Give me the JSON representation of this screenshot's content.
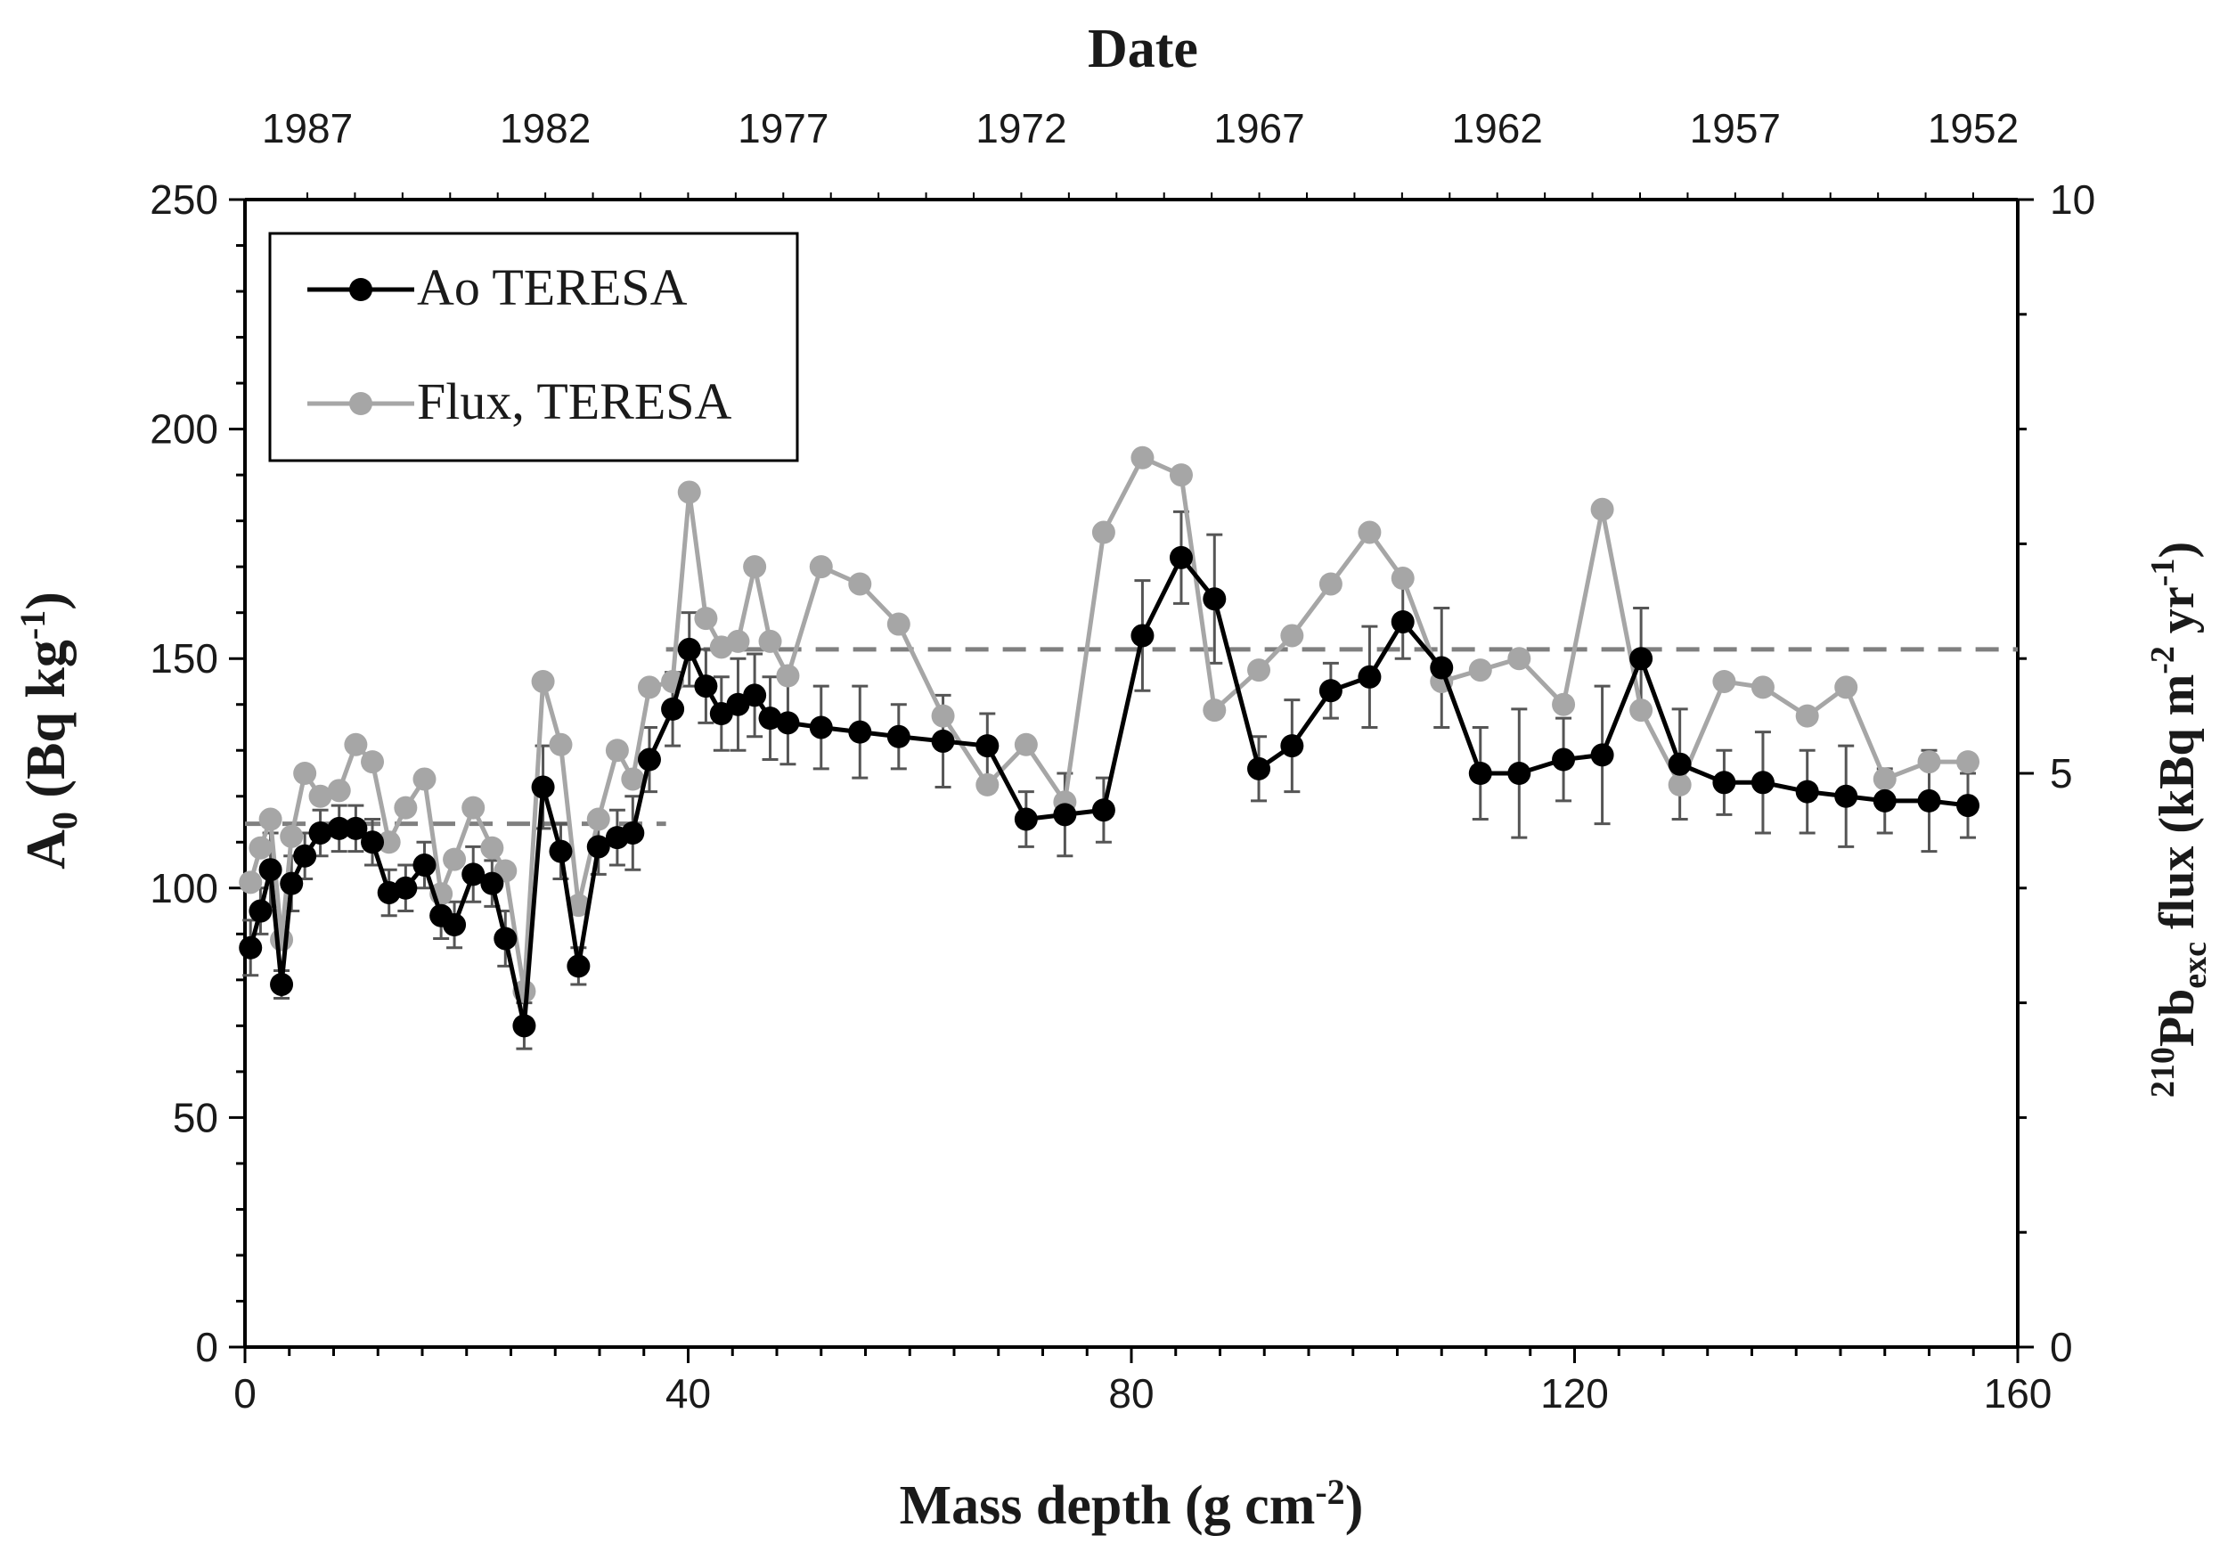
{
  "chart_data": {
    "type": "line",
    "title": "",
    "top_axis": {
      "label": "Date",
      "ticks": [
        "1987",
        "1982",
        "1977",
        "1972",
        "1967",
        "1962",
        "1957",
        "1952"
      ]
    },
    "xlabel": {
      "main": "Mass depth (g cm",
      "sup": "-2",
      "end": ")"
    },
    "ylabel": {
      "main": "A",
      "sub": "0",
      "mid": " (Bq kg",
      "sup": "-1",
      "end": ")"
    },
    "y2label": {
      "pre_sup": "210",
      "main": "Pb",
      "sub": "exc",
      "mid": " flux (kBq m",
      "sup1": "-2",
      "mid2": " yr",
      "sup2": "-1",
      "end": ")"
    },
    "xlim": [
      0,
      160
    ],
    "ylim": [
      0,
      250
    ],
    "y2lim": [
      0,
      10
    ],
    "x_ticks": [
      "0",
      "40",
      "80",
      "120",
      "160"
    ],
    "y_ticks": [
      "0",
      "50",
      "100",
      "150",
      "200",
      "250"
    ],
    "y2_ticks": [
      "0",
      "5",
      "10"
    ],
    "legend_position": "top-left",
    "series": [
      {
        "name": "Ao TERESA",
        "axis": "left",
        "color": "#000000",
        "x": [
          0.5,
          1.4,
          2.3,
          3.3,
          4.2,
          5.4,
          6.8,
          8.5,
          10,
          11.5,
          13.0,
          14.5,
          16.2,
          17.7,
          18.9,
          20.6,
          22.3,
          23.5,
          25.2,
          26.9,
          28.5,
          30.1,
          31.9,
          33.6,
          35.0,
          36.5,
          38.6,
          40.1,
          41.6,
          43.0,
          44.5,
          46.0,
          47.4,
          49.0,
          52.0,
          55.5,
          59.0,
          63.0,
          67.0,
          70.5,
          74.0,
          77.5,
          81.0,
          84.5,
          87.5,
          91.5,
          94.5,
          98.0,
          101.5,
          104.5,
          108.0,
          111.5,
          115.0,
          119.0,
          122.5,
          126.0,
          129.5,
          133.5,
          137.0,
          141.0,
          144.5,
          148.0,
          152.0,
          155.5
        ],
        "values": [
          87,
          95,
          104,
          79,
          101,
          107,
          112,
          113,
          113,
          110,
          99,
          100,
          105,
          94,
          92,
          103,
          101,
          89,
          70,
          122,
          108,
          83,
          109,
          111,
          112,
          128,
          139,
          152,
          144,
          138,
          140,
          142,
          137,
          136,
          135,
          134,
          133,
          132,
          131,
          115,
          116,
          117,
          155,
          172,
          163,
          126,
          131,
          143,
          146,
          158,
          148,
          125,
          125,
          128,
          129,
          150,
          127,
          123,
          123,
          121,
          120,
          119,
          119,
          118
        ],
        "error_plus": [
          6,
          5,
          8,
          3,
          6,
          5,
          5,
          5,
          5,
          5,
          5,
          5,
          5,
          5,
          5,
          6,
          5,
          6,
          5,
          9,
          6,
          4,
          6,
          6,
          8,
          7,
          8,
          8,
          8,
          8,
          10,
          9,
          9,
          9,
          9,
          10,
          7,
          10,
          7,
          6,
          9,
          7,
          12,
          10,
          14,
          7,
          10,
          6,
          11,
          8,
          13,
          10,
          14,
          9,
          15,
          11,
          12,
          7,
          11,
          9,
          11,
          7,
          11,
          7
        ],
        "error_minus": [
          6,
          5,
          8,
          3,
          6,
          5,
          5,
          5,
          5,
          5,
          5,
          5,
          5,
          5,
          5,
          6,
          5,
          6,
          5,
          9,
          6,
          4,
          6,
          6,
          8,
          7,
          8,
          8,
          8,
          8,
          10,
          9,
          9,
          9,
          9,
          10,
          7,
          10,
          7,
          6,
          9,
          7,
          12,
          10,
          14,
          7,
          10,
          6,
          11,
          8,
          13,
          10,
          14,
          9,
          15,
          11,
          12,
          7,
          11,
          9,
          11,
          7,
          11,
          7
        ]
      },
      {
        "name": "Flux, TERESA",
        "axis": "right",
        "color": "#a6a6a6",
        "x": [
          0.5,
          1.4,
          2.3,
          3.3,
          4.2,
          5.4,
          6.8,
          8.5,
          10,
          11.5,
          13.0,
          14.5,
          16.2,
          17.7,
          18.9,
          20.6,
          22.3,
          23.5,
          25.2,
          26.9,
          28.5,
          30.1,
          31.9,
          33.6,
          35.0,
          36.5,
          38.6,
          40.1,
          41.6,
          43.0,
          44.5,
          46.0,
          47.4,
          49.0,
          52.0,
          55.5,
          59.0,
          63.0,
          67.0,
          70.5,
          74.0,
          77.5,
          81.0,
          84.5,
          87.5,
          91.5,
          94.5,
          98.0,
          101.5,
          104.5,
          108.0,
          111.5,
          115.0,
          119.0,
          122.5,
          126.0,
          129.5,
          133.5,
          137.0,
          141.0,
          144.5,
          148.0,
          152.0,
          155.5
        ],
        "values": [
          4.05,
          4.35,
          4.6,
          3.55,
          4.45,
          5.0,
          4.8,
          4.85,
          5.25,
          5.1,
          4.4,
          4.7,
          4.95,
          3.95,
          4.25,
          4.7,
          4.35,
          4.15,
          3.1,
          5.8,
          5.25,
          3.85,
          4.6,
          5.2,
          4.95,
          5.75,
          5.8,
          7.45,
          6.35,
          6.1,
          6.15,
          6.8,
          6.15,
          5.85,
          6.8,
          6.65,
          6.3,
          5.5,
          4.9,
          5.25,
          4.75,
          7.1,
          7.75,
          7.6,
          5.55,
          5.9,
          6.2,
          6.65,
          7.1,
          6.7,
          5.8,
          5.9,
          6.0,
          5.6,
          7.3,
          5.55,
          4.9,
          5.8,
          5.75,
          5.5,
          5.75,
          4.95,
          5.1,
          5.1
        ],
        "reference_line": 6.1
      }
    ],
    "reference_lines": [
      {
        "axis": "left",
        "y": 114,
        "x_from": 0,
        "x_to": 38
      },
      {
        "axis": "left",
        "y": 152,
        "x_from": 38,
        "x_to": 160
      }
    ]
  }
}
